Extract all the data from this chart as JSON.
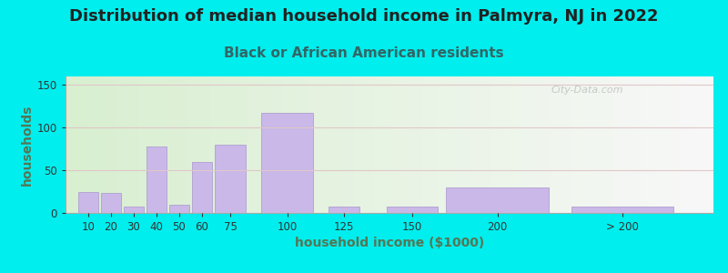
{
  "title": "Distribution of median household income in Palmyra, NJ in 2022",
  "subtitle": "Black or African American residents",
  "xlabel": "household income ($1000)",
  "ylabel": "households",
  "watermark": "City-Data.com",
  "bar_color": "#c9b8e8",
  "bar_edge_color": "#b0a0d0",
  "background_color": "#00eeee",
  "plot_bg_left": "#d8efd0",
  "plot_bg_right": "#f8f8f8",
  "title_color": "#222222",
  "subtitle_color": "#336666",
  "axis_label_color": "#557755",
  "tick_color": "#333333",
  "categories": [
    "10",
    "20",
    "30",
    "40",
    "50",
    "60",
    "75",
    "100",
    "125",
    "150",
    "200",
    "> 200"
  ],
  "values": [
    25,
    23,
    8,
    78,
    10,
    60,
    80,
    117,
    8,
    8,
    30,
    8
  ],
  "bar_widths": [
    10,
    10,
    10,
    10,
    10,
    10,
    15,
    25,
    15,
    25,
    50,
    50
  ],
  "bar_lefts": [
    5,
    15,
    25,
    35,
    45,
    55,
    65,
    85,
    115,
    140,
    165,
    220
  ],
  "xlim": [
    0,
    285
  ],
  "ylim": [
    0,
    160
  ],
  "yticks": [
    0,
    50,
    100,
    150
  ],
  "title_fontsize": 13,
  "subtitle_fontsize": 11,
  "axis_label_fontsize": 10,
  "tick_fontsize": 8.5
}
